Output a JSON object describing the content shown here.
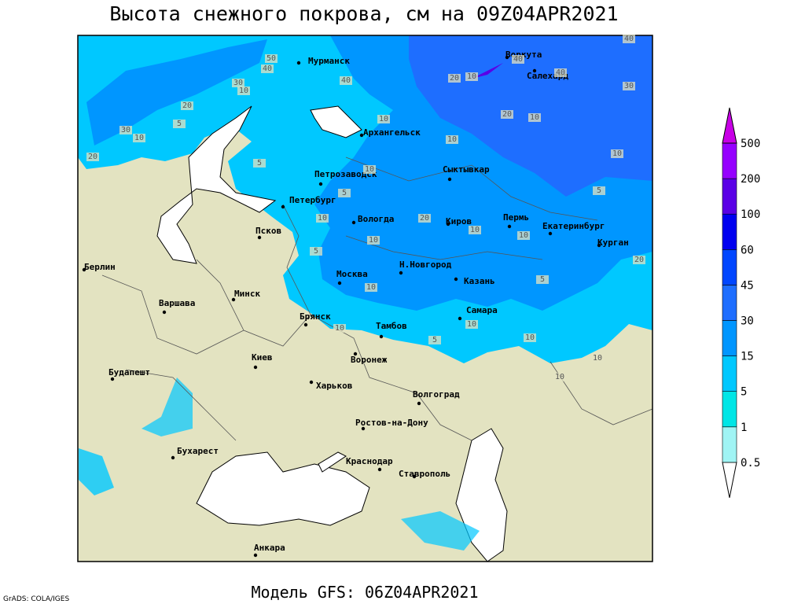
{
  "title": "Высота снежного покрова, см на 09Z04APR2021",
  "subtitle": "Модель GFS: 06Z04APR2021",
  "credit": "GrADS: COLA/IGES",
  "legend": {
    "levels": [
      0.5,
      1,
      5,
      15,
      30,
      45,
      60,
      100,
      200,
      500
    ],
    "colors": [
      "#ffffff",
      "#a0f4f4",
      "#00e6e6",
      "#00c8ff",
      "#0096ff",
      "#1e6eff",
      "#0046ff",
      "#0000f0",
      "#5a00e6",
      "#9600ff",
      "#c800e6"
    ]
  },
  "cities": [
    "Мурманск",
    "Архангельск",
    "Петрозаводск",
    "Петербург",
    "Сыктывкар",
    "Воркута",
    "Салехард",
    "Вологда",
    "Киров",
    "Пермь",
    "Екатеринбург",
    "Курган",
    "Псков",
    "Москва",
    "Н.Новгород",
    "Казань",
    "Самара",
    "Берлин",
    "Варшава",
    "Минск",
    "Брянск",
    "Тамбов",
    "Воронеж",
    "Киев",
    "Харьков",
    "Волгоград",
    "Будапешт",
    "Ростов-на-Дону",
    "Бухарест",
    "Краснодар",
    "Ставрополь",
    "Анкара"
  ],
  "contour_labels": [
    50,
    40,
    40,
    30,
    40,
    10,
    20,
    5,
    30,
    10,
    20,
    10,
    10,
    20,
    10,
    5,
    10,
    10,
    20,
    10,
    5,
    10,
    10,
    5,
    10,
    5,
    5,
    10,
    10,
    10,
    5,
    10,
    10,
    20,
    30,
    40,
    20,
    10,
    40,
    10
  ]
}
